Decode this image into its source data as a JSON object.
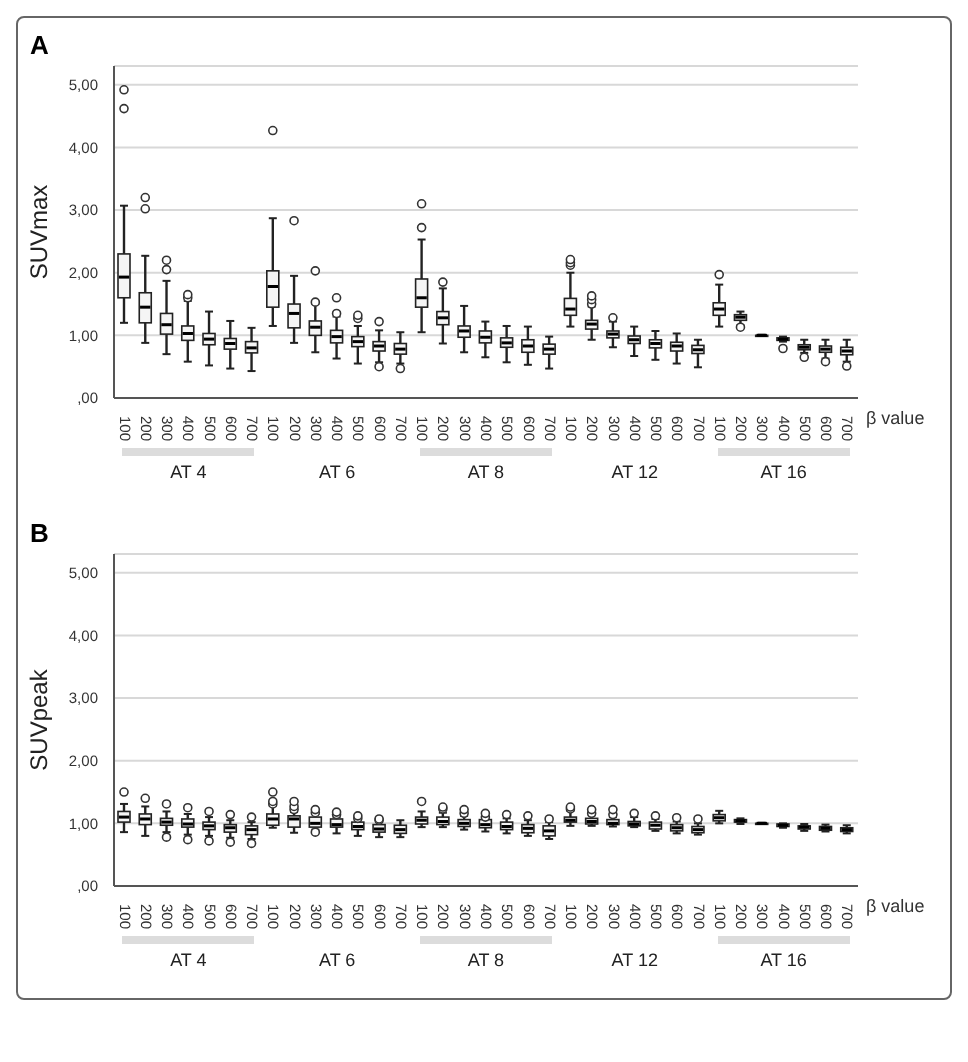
{
  "chart_data": [
    {
      "type": "box",
      "title": "A",
      "xlabel": "β value",
      "ylabel": "SUVmax",
      "grid": "y",
      "categories": [
        "100",
        "200",
        "300",
        "400",
        "500",
        "600",
        "700",
        "100",
        "200",
        "300",
        "400",
        "500",
        "600",
        "700",
        "100",
        "200",
        "300",
        "400",
        "500",
        "600",
        "700",
        "100",
        "200",
        "300",
        "400",
        "500",
        "600",
        "700",
        "100",
        "200",
        "300",
        "400",
        "500",
        "600",
        "700"
      ],
      "ylim": [
        0,
        5.3
      ],
      "yticks": [
        {
          "value": 0,
          "label": ",00"
        },
        {
          "value": 1,
          "label": "1,00"
        },
        {
          "value": 2,
          "label": "2,00"
        },
        {
          "value": 3,
          "label": "3,00"
        },
        {
          "value": 4,
          "label": "4,00"
        },
        {
          "value": 5,
          "label": "5,00"
        }
      ],
      "annotations": [
        "AT 4",
        "AT 6",
        "AT 8",
        "AT 12",
        "AT 16"
      ],
      "boxes": [
        {
          "low": 1.2,
          "q1": 1.6,
          "median": 1.93,
          "q3": 2.3,
          "high": 3.07,
          "outliers": [
            4.62,
            4.92
          ]
        },
        {
          "low": 0.88,
          "q1": 1.2,
          "median": 1.45,
          "q3": 1.68,
          "high": 2.27,
          "outliers": [
            3.02,
            3.2
          ]
        },
        {
          "low": 0.7,
          "q1": 1.02,
          "median": 1.17,
          "q3": 1.35,
          "high": 1.87,
          "outliers": [
            2.05,
            2.2
          ]
        },
        {
          "low": 0.58,
          "q1": 0.92,
          "median": 1.03,
          "q3": 1.15,
          "high": 1.55,
          "outliers": [
            1.6,
            1.65
          ]
        },
        {
          "low": 0.52,
          "q1": 0.85,
          "median": 0.94,
          "q3": 1.03,
          "high": 1.38
        },
        {
          "low": 0.47,
          "q1": 0.78,
          "median": 0.87,
          "q3": 0.95,
          "high": 1.23
        },
        {
          "low": 0.43,
          "q1": 0.72,
          "median": 0.8,
          "q3": 0.9,
          "high": 1.12
        },
        {
          "low": 1.15,
          "q1": 1.45,
          "median": 1.78,
          "q3": 2.03,
          "high": 2.87,
          "outliers": [
            4.27
          ]
        },
        {
          "low": 0.88,
          "q1": 1.12,
          "median": 1.35,
          "q3": 1.5,
          "high": 1.95,
          "outliers": [
            2.83
          ]
        },
        {
          "low": 0.73,
          "q1": 1.0,
          "median": 1.13,
          "q3": 1.23,
          "high": 1.5,
          "outliers": [
            1.53,
            2.03
          ]
        },
        {
          "low": 0.63,
          "q1": 0.88,
          "median": 0.98,
          "q3": 1.08,
          "high": 1.3,
          "outliers": [
            1.35,
            1.6
          ]
        },
        {
          "low": 0.55,
          "q1": 0.82,
          "median": 0.9,
          "q3": 0.98,
          "high": 1.15,
          "outliers": [
            1.27,
            1.32
          ]
        },
        {
          "low": 0.57,
          "q1": 0.75,
          "median": 0.83,
          "q3": 0.9,
          "high": 1.08,
          "outliers": [
            0.5,
            1.22
          ]
        },
        {
          "low": 0.55,
          "q1": 0.7,
          "median": 0.78,
          "q3": 0.87,
          "high": 1.05,
          "outliers": [
            0.47
          ]
        },
        {
          "low": 1.05,
          "q1": 1.45,
          "median": 1.6,
          "q3": 1.9,
          "high": 2.53,
          "outliers": [
            2.72,
            3.1
          ]
        },
        {
          "low": 0.87,
          "q1": 1.17,
          "median": 1.28,
          "q3": 1.38,
          "high": 1.75,
          "outliers": [
            1.85
          ]
        },
        {
          "low": 0.73,
          "q1": 0.97,
          "median": 1.07,
          "q3": 1.15,
          "high": 1.47
        },
        {
          "low": 0.65,
          "q1": 0.88,
          "median": 0.97,
          "q3": 1.07,
          "high": 1.22
        },
        {
          "low": 0.57,
          "q1": 0.81,
          "median": 0.88,
          "q3": 0.96,
          "high": 1.15
        },
        {
          "low": 0.53,
          "q1": 0.73,
          "median": 0.83,
          "q3": 0.93,
          "high": 1.14
        },
        {
          "low": 0.47,
          "q1": 0.7,
          "median": 0.78,
          "q3": 0.86,
          "high": 0.98
        },
        {
          "low": 1.14,
          "q1": 1.32,
          "median": 1.42,
          "q3": 1.59,
          "high": 2.0,
          "outliers": [
            2.12,
            2.16,
            2.21
          ]
        },
        {
          "low": 0.93,
          "q1": 1.1,
          "median": 1.18,
          "q3": 1.24,
          "high": 1.46,
          "outliers": [
            1.5,
            1.57,
            1.63
          ]
        },
        {
          "low": 0.81,
          "q1": 0.96,
          "median": 1.02,
          "q3": 1.07,
          "high": 1.22,
          "outliers": [
            1.28
          ]
        },
        {
          "low": 0.67,
          "q1": 0.87,
          "median": 0.93,
          "q3": 0.99,
          "high": 1.14
        },
        {
          "low": 0.61,
          "q1": 0.8,
          "median": 0.87,
          "q3": 0.93,
          "high": 1.07
        },
        {
          "low": 0.55,
          "q1": 0.75,
          "median": 0.83,
          "q3": 0.89,
          "high": 1.03
        },
        {
          "low": 0.49,
          "q1": 0.71,
          "median": 0.77,
          "q3": 0.84,
          "high": 0.93
        },
        {
          "low": 1.14,
          "q1": 1.32,
          "median": 1.42,
          "q3": 1.52,
          "high": 1.81,
          "outliers": [
            1.97
          ]
        },
        {
          "low": 1.16,
          "q1": 1.24,
          "median": 1.29,
          "q3": 1.33,
          "high": 1.38,
          "outliers": [
            1.13
          ]
        },
        {
          "low": 0.99,
          "q1": 1.0,
          "median": 1.0,
          "q3": 1.0,
          "high": 1.01
        },
        {
          "low": 0.9,
          "q1": 0.92,
          "median": 0.94,
          "q3": 0.96,
          "high": 0.98,
          "outliers": [
            0.79
          ]
        },
        {
          "low": 0.72,
          "q1": 0.77,
          "median": 0.81,
          "q3": 0.85,
          "high": 0.93,
          "outliers": [
            0.65
          ]
        },
        {
          "low": 0.63,
          "q1": 0.73,
          "median": 0.78,
          "q3": 0.83,
          "high": 0.93,
          "outliers": [
            0.58
          ]
        },
        {
          "low": 0.58,
          "q1": 0.69,
          "median": 0.75,
          "q3": 0.81,
          "high": 0.93,
          "outliers": [
            0.51
          ]
        }
      ]
    },
    {
      "type": "box",
      "title": "B",
      "xlabel": "β value",
      "ylabel": "SUVpeak",
      "grid": "y",
      "categories": [
        "100",
        "200",
        "300",
        "400",
        "500",
        "600",
        "700",
        "100",
        "200",
        "300",
        "400",
        "500",
        "600",
        "700",
        "100",
        "200",
        "300",
        "400",
        "500",
        "600",
        "700",
        "100",
        "200",
        "300",
        "400",
        "500",
        "600",
        "700",
        "100",
        "200",
        "300",
        "400",
        "500",
        "600",
        "700"
      ],
      "ylim": [
        0,
        5.3
      ],
      "yticks": [
        {
          "value": 0,
          "label": ",00"
        },
        {
          "value": 1,
          "label": "1,00"
        },
        {
          "value": 2,
          "label": "2,00"
        },
        {
          "value": 3,
          "label": "3,00"
        },
        {
          "value": 4,
          "label": "4,00"
        },
        {
          "value": 5,
          "label": "5,00"
        }
      ],
      "annotations": [
        "AT 4",
        "AT 6",
        "AT 8",
        "AT 12",
        "AT 16"
      ],
      "boxes": [
        {
          "low": 0.86,
          "q1": 1.02,
          "median": 1.1,
          "q3": 1.19,
          "high": 1.31,
          "outliers": [
            1.5
          ]
        },
        {
          "low": 0.8,
          "q1": 0.98,
          "median": 1.07,
          "q3": 1.15,
          "high": 1.27,
          "outliers": [
            1.4
          ]
        },
        {
          "low": 0.86,
          "q1": 0.97,
          "median": 1.02,
          "q3": 1.08,
          "high": 1.19,
          "outliers": [
            0.78,
            1.31
          ]
        },
        {
          "low": 0.82,
          "q1": 0.94,
          "median": 0.99,
          "q3": 1.07,
          "high": 1.15,
          "outliers": [
            0.74,
            1.25
          ]
        },
        {
          "low": 0.8,
          "q1": 0.9,
          "median": 0.96,
          "q3": 1.02,
          "high": 1.1,
          "outliers": [
            0.72,
            1.19
          ]
        },
        {
          "low": 0.77,
          "q1": 0.86,
          "median": 0.93,
          "q3": 0.98,
          "high": 1.05,
          "outliers": [
            0.7,
            1.14
          ]
        },
        {
          "low": 0.75,
          "q1": 0.82,
          "median": 0.9,
          "q3": 0.96,
          "high": 1.02,
          "outliers": [
            0.68,
            1.1
          ]
        },
        {
          "low": 0.93,
          "q1": 0.97,
          "median": 1.07,
          "q3": 1.15,
          "high": 1.28,
          "outliers": [
            1.31,
            1.35,
            1.5
          ]
        },
        {
          "low": 0.85,
          "q1": 0.94,
          "median": 1.07,
          "q3": 1.12,
          "high": 1.18,
          "outliers": [
            1.22,
            1.27,
            1.35
          ]
        },
        {
          "low": 0.9,
          "q1": 0.94,
          "median": 1.0,
          "q3": 1.1,
          "high": 1.15,
          "outliers": [
            0.86,
            1.17,
            1.22
          ]
        },
        {
          "low": 0.84,
          "q1": 0.94,
          "median": 0.98,
          "q3": 1.07,
          "high": 1.1,
          "outliers": [
            1.14,
            1.18
          ]
        },
        {
          "low": 0.8,
          "q1": 0.9,
          "median": 0.95,
          "q3": 1.02,
          "high": 1.05,
          "outliers": [
            1.08,
            1.12
          ]
        },
        {
          "low": 0.78,
          "q1": 0.86,
          "median": 0.91,
          "q3": 0.98,
          "high": 1.02,
          "outliers": [
            1.05,
            1.07
          ]
        },
        {
          "low": 0.78,
          "q1": 0.84,
          "median": 0.9,
          "q3": 0.97,
          "high": 1.05
        },
        {
          "low": 0.94,
          "q1": 0.99,
          "median": 1.05,
          "q3": 1.1,
          "high": 1.19,
          "outliers": [
            1.35
          ]
        },
        {
          "low": 0.94,
          "q1": 0.98,
          "median": 1.03,
          "q3": 1.1,
          "high": 1.17,
          "outliers": [
            1.23,
            1.26
          ]
        },
        {
          "low": 0.9,
          "q1": 0.95,
          "median": 1.0,
          "q3": 1.06,
          "high": 1.12,
          "outliers": [
            1.16,
            1.22
          ]
        },
        {
          "low": 0.87,
          "q1": 0.93,
          "median": 0.98,
          "q3": 1.06,
          "high": 1.08,
          "outliers": [
            1.1,
            1.16
          ]
        },
        {
          "low": 0.84,
          "q1": 0.9,
          "median": 0.95,
          "q3": 1.02,
          "high": 1.08,
          "outliers": [
            1.14
          ]
        },
        {
          "low": 0.8,
          "q1": 0.85,
          "median": 0.92,
          "q3": 0.98,
          "high": 1.05,
          "outliers": [
            1.12
          ]
        },
        {
          "low": 0.75,
          "q1": 0.8,
          "median": 0.88,
          "q3": 0.96,
          "high": 1.02,
          "outliers": [
            1.07
          ]
        },
        {
          "low": 0.96,
          "q1": 1.02,
          "median": 1.05,
          "q3": 1.1,
          "high": 1.2,
          "outliers": [
            1.23,
            1.26
          ]
        },
        {
          "low": 0.96,
          "q1": 0.99,
          "median": 1.03,
          "q3": 1.08,
          "high": 1.13,
          "outliers": [
            1.16,
            1.22
          ]
        },
        {
          "low": 0.95,
          "q1": 0.98,
          "median": 1.0,
          "q3": 1.06,
          "high": 1.1,
          "outliers": [
            1.14,
            1.22
          ]
        },
        {
          "low": 0.94,
          "q1": 0.96,
          "median": 0.99,
          "q3": 1.03,
          "high": 1.1,
          "outliers": [
            1.16
          ]
        },
        {
          "low": 0.88,
          "q1": 0.91,
          "median": 0.97,
          "q3": 1.02,
          "high": 1.07,
          "outliers": [
            1.12
          ]
        },
        {
          "low": 0.84,
          "q1": 0.88,
          "median": 0.93,
          "q3": 0.98,
          "high": 1.03,
          "outliers": [
            1.09
          ]
        },
        {
          "low": 0.82,
          "q1": 0.85,
          "median": 0.9,
          "q3": 0.95,
          "high": 1.0,
          "outliers": [
            1.07
          ]
        },
        {
          "low": 1.0,
          "q1": 1.04,
          "median": 1.09,
          "q3": 1.14,
          "high": 1.2
        },
        {
          "low": 0.99,
          "q1": 1.02,
          "median": 1.04,
          "q3": 1.06,
          "high": 1.08
        },
        {
          "low": 0.99,
          "q1": 1.0,
          "median": 1.0,
          "q3": 1.0,
          "high": 1.01
        },
        {
          "low": 0.93,
          "q1": 0.95,
          "median": 0.97,
          "q3": 0.99,
          "high": 1.0
        },
        {
          "low": 0.88,
          "q1": 0.91,
          "median": 0.94,
          "q3": 0.96,
          "high": 0.99
        },
        {
          "low": 0.87,
          "q1": 0.89,
          "median": 0.92,
          "q3": 0.95,
          "high": 0.98
        },
        {
          "low": 0.84,
          "q1": 0.87,
          "median": 0.9,
          "q3": 0.93,
          "high": 0.97
        }
      ]
    }
  ]
}
